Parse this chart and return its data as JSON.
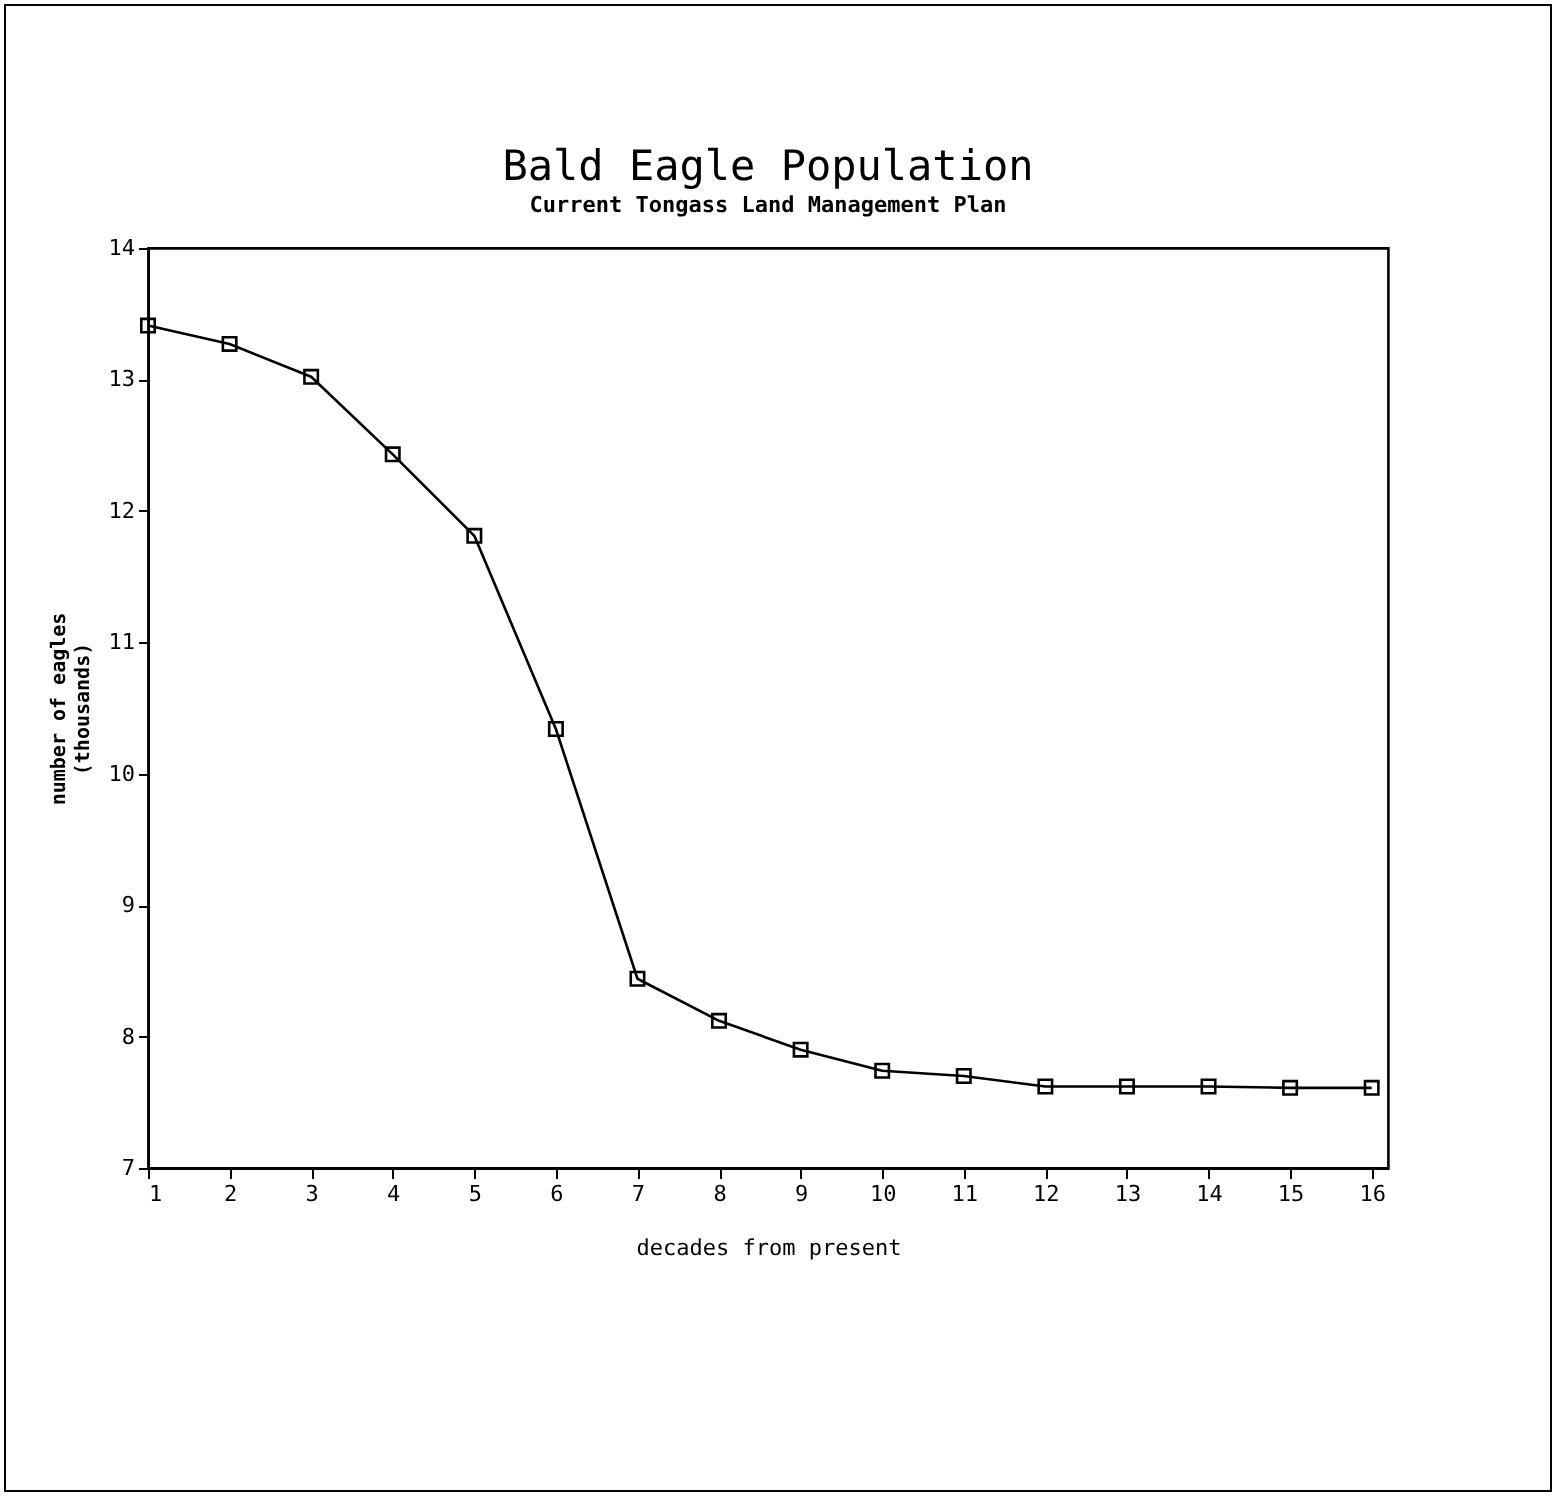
{
  "chart_data": {
    "type": "line",
    "title": "Bald Eagle Population",
    "subtitle": "Current Tongass Land Management Plan",
    "xlabel": "decades from present",
    "ylabel": "number of eagles\n(thousands)",
    "x": [
      1,
      2,
      3,
      4,
      5,
      6,
      7,
      8,
      9,
      10,
      11,
      12,
      13,
      14,
      15,
      16
    ],
    "series": [
      {
        "color": "#000000",
        "values": [
          13.41,
          13.27,
          13.02,
          12.43,
          11.81,
          10.34,
          8.44,
          8.12,
          7.9,
          7.74,
          7.7,
          7.62,
          7.62,
          7.62,
          7.61,
          7.61
        ]
      }
    ],
    "xlim": [
      1,
      16.2
    ],
    "xticks": [
      1,
      2,
      3,
      4,
      5,
      6,
      7,
      8,
      9,
      10,
      11,
      12,
      13,
      14,
      15,
      16
    ],
    "ylim": [
      7,
      14
    ],
    "yticks": [
      7,
      8,
      9,
      10,
      11,
      12,
      13,
      14
    ],
    "grid": false,
    "legend": false,
    "marker": "square",
    "line_style": "solid"
  }
}
